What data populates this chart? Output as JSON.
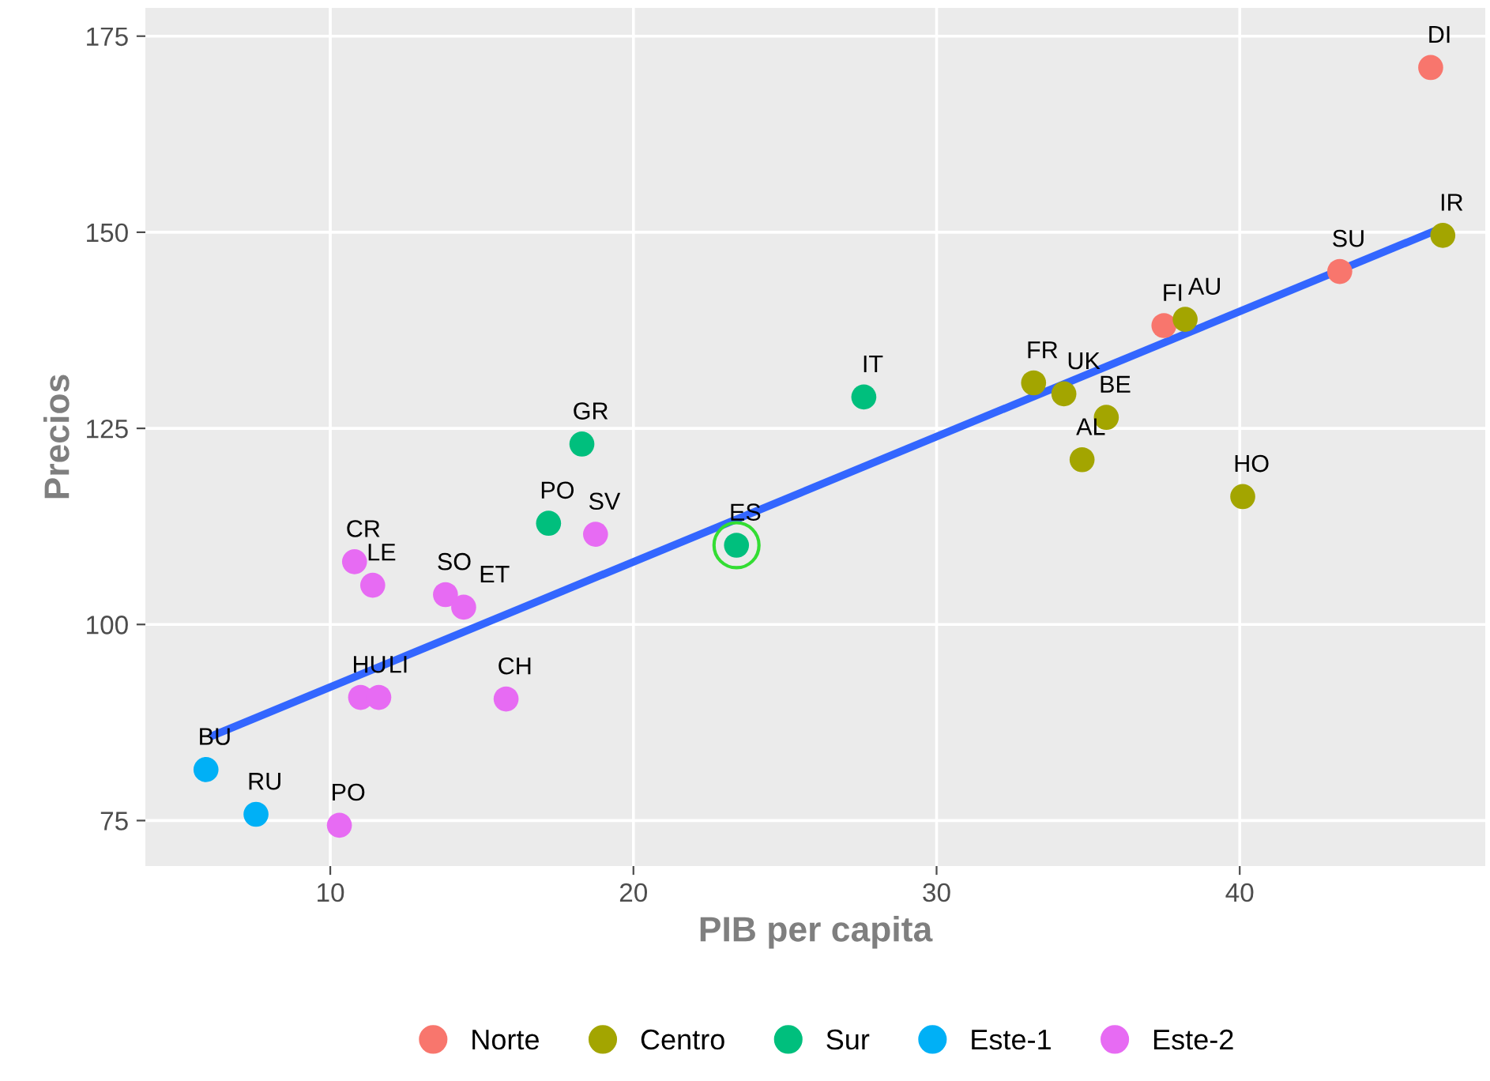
{
  "chart_data": {
    "type": "scatter",
    "xlabel": "PIB per capita",
    "ylabel": "Precios",
    "xlim": [
      3.9,
      48.1
    ],
    "ylim": [
      69.2,
      178.6
    ],
    "xticks": [
      10,
      20,
      30,
      40
    ],
    "yticks": [
      75,
      100,
      125,
      150,
      175
    ],
    "grid": true,
    "legend": "bottom",
    "marker": "circle",
    "series": [
      {
        "name": "Norte",
        "color": "#f8766d",
        "x": [
          46.3,
          43.3,
          37.5
        ],
        "values": [
          171,
          145,
          138.1
        ]
      },
      {
        "name": "Centro",
        "color": "#a3a500",
        "x": [
          46.7,
          38.2,
          33.2,
          34.2,
          35.6,
          34.8,
          40.1
        ],
        "values": [
          149.6,
          138.9,
          130.8,
          129.4,
          126.4,
          121,
          116.3
        ]
      },
      {
        "name": "Sur",
        "color": "#00bf7d",
        "x": [
          27.6,
          18.3,
          17.2,
          23.4
        ],
        "values": [
          129,
          123,
          112.9,
          110.1
        ]
      },
      {
        "name": "Este-1",
        "color": "#00b0f6",
        "x": [
          5.9,
          7.55
        ],
        "values": [
          81.5,
          75.8
        ]
      },
      {
        "name": "Este-2",
        "color": "#e76bf3",
        "x": [
          18.75,
          10.8,
          11.4,
          13.8,
          14.4,
          11.0,
          11.6,
          15.8,
          10.3
        ],
        "values": [
          111.5,
          108,
          105,
          103.8,
          102.2,
          90.7,
          90.7,
          90.5,
          74.4
        ]
      },
      {
        "type": "line",
        "marker": "none",
        "color": "#3366ff",
        "x": [
          6.04,
          46.7
        ],
        "values": [
          85.7,
          150.6
        ]
      }
    ],
    "annotations": [
      {
        "text": "DI",
        "x": 46.3,
        "y": 171
      },
      {
        "text": "SU",
        "x": 43.3,
        "y": 145
      },
      {
        "text": "FI",
        "x": 37.5,
        "y": 138.1
      },
      {
        "text": "IR",
        "x": 46.7,
        "y": 149.6
      },
      {
        "text": "AU",
        "x": 38.2,
        "y": 138.9
      },
      {
        "text": "FR",
        "x": 33.2,
        "y": 130.8
      },
      {
        "text": "UK",
        "x": 34.2,
        "y": 129.4
      },
      {
        "text": "BE",
        "x": 35.6,
        "y": 126.4
      },
      {
        "text": "AL",
        "x": 34.8,
        "y": 121
      },
      {
        "text": "HO",
        "x": 40.1,
        "y": 116.3
      },
      {
        "text": "IT",
        "x": 27.6,
        "y": 129
      },
      {
        "text": "GR",
        "x": 18.3,
        "y": 123
      },
      {
        "text": "PO",
        "x": 17.2,
        "y": 112.9
      },
      {
        "text": "ES",
        "x": 23.4,
        "y": 110.1
      },
      {
        "text": "BU",
        "x": 5.9,
        "y": 81.5
      },
      {
        "text": "RU",
        "x": 7.55,
        "y": 75.8
      },
      {
        "text": "SV",
        "x": 18.75,
        "y": 111.5
      },
      {
        "text": "CR",
        "x": 10.8,
        "y": 108
      },
      {
        "text": "LE",
        "x": 11.4,
        "y": 105
      },
      {
        "text": "SO",
        "x": 13.8,
        "y": 103.8
      },
      {
        "text": "ET",
        "x": 14.4,
        "y": 102.2
      },
      {
        "text": "HU",
        "x": 11.0,
        "y": 90.7
      },
      {
        "text": "LI",
        "x": 11.6,
        "y": 90.7
      },
      {
        "text": "CH",
        "x": 15.8,
        "y": 90.5
      },
      {
        "text": "PO",
        "x": 10.3,
        "y": 74.4
      }
    ]
  }
}
